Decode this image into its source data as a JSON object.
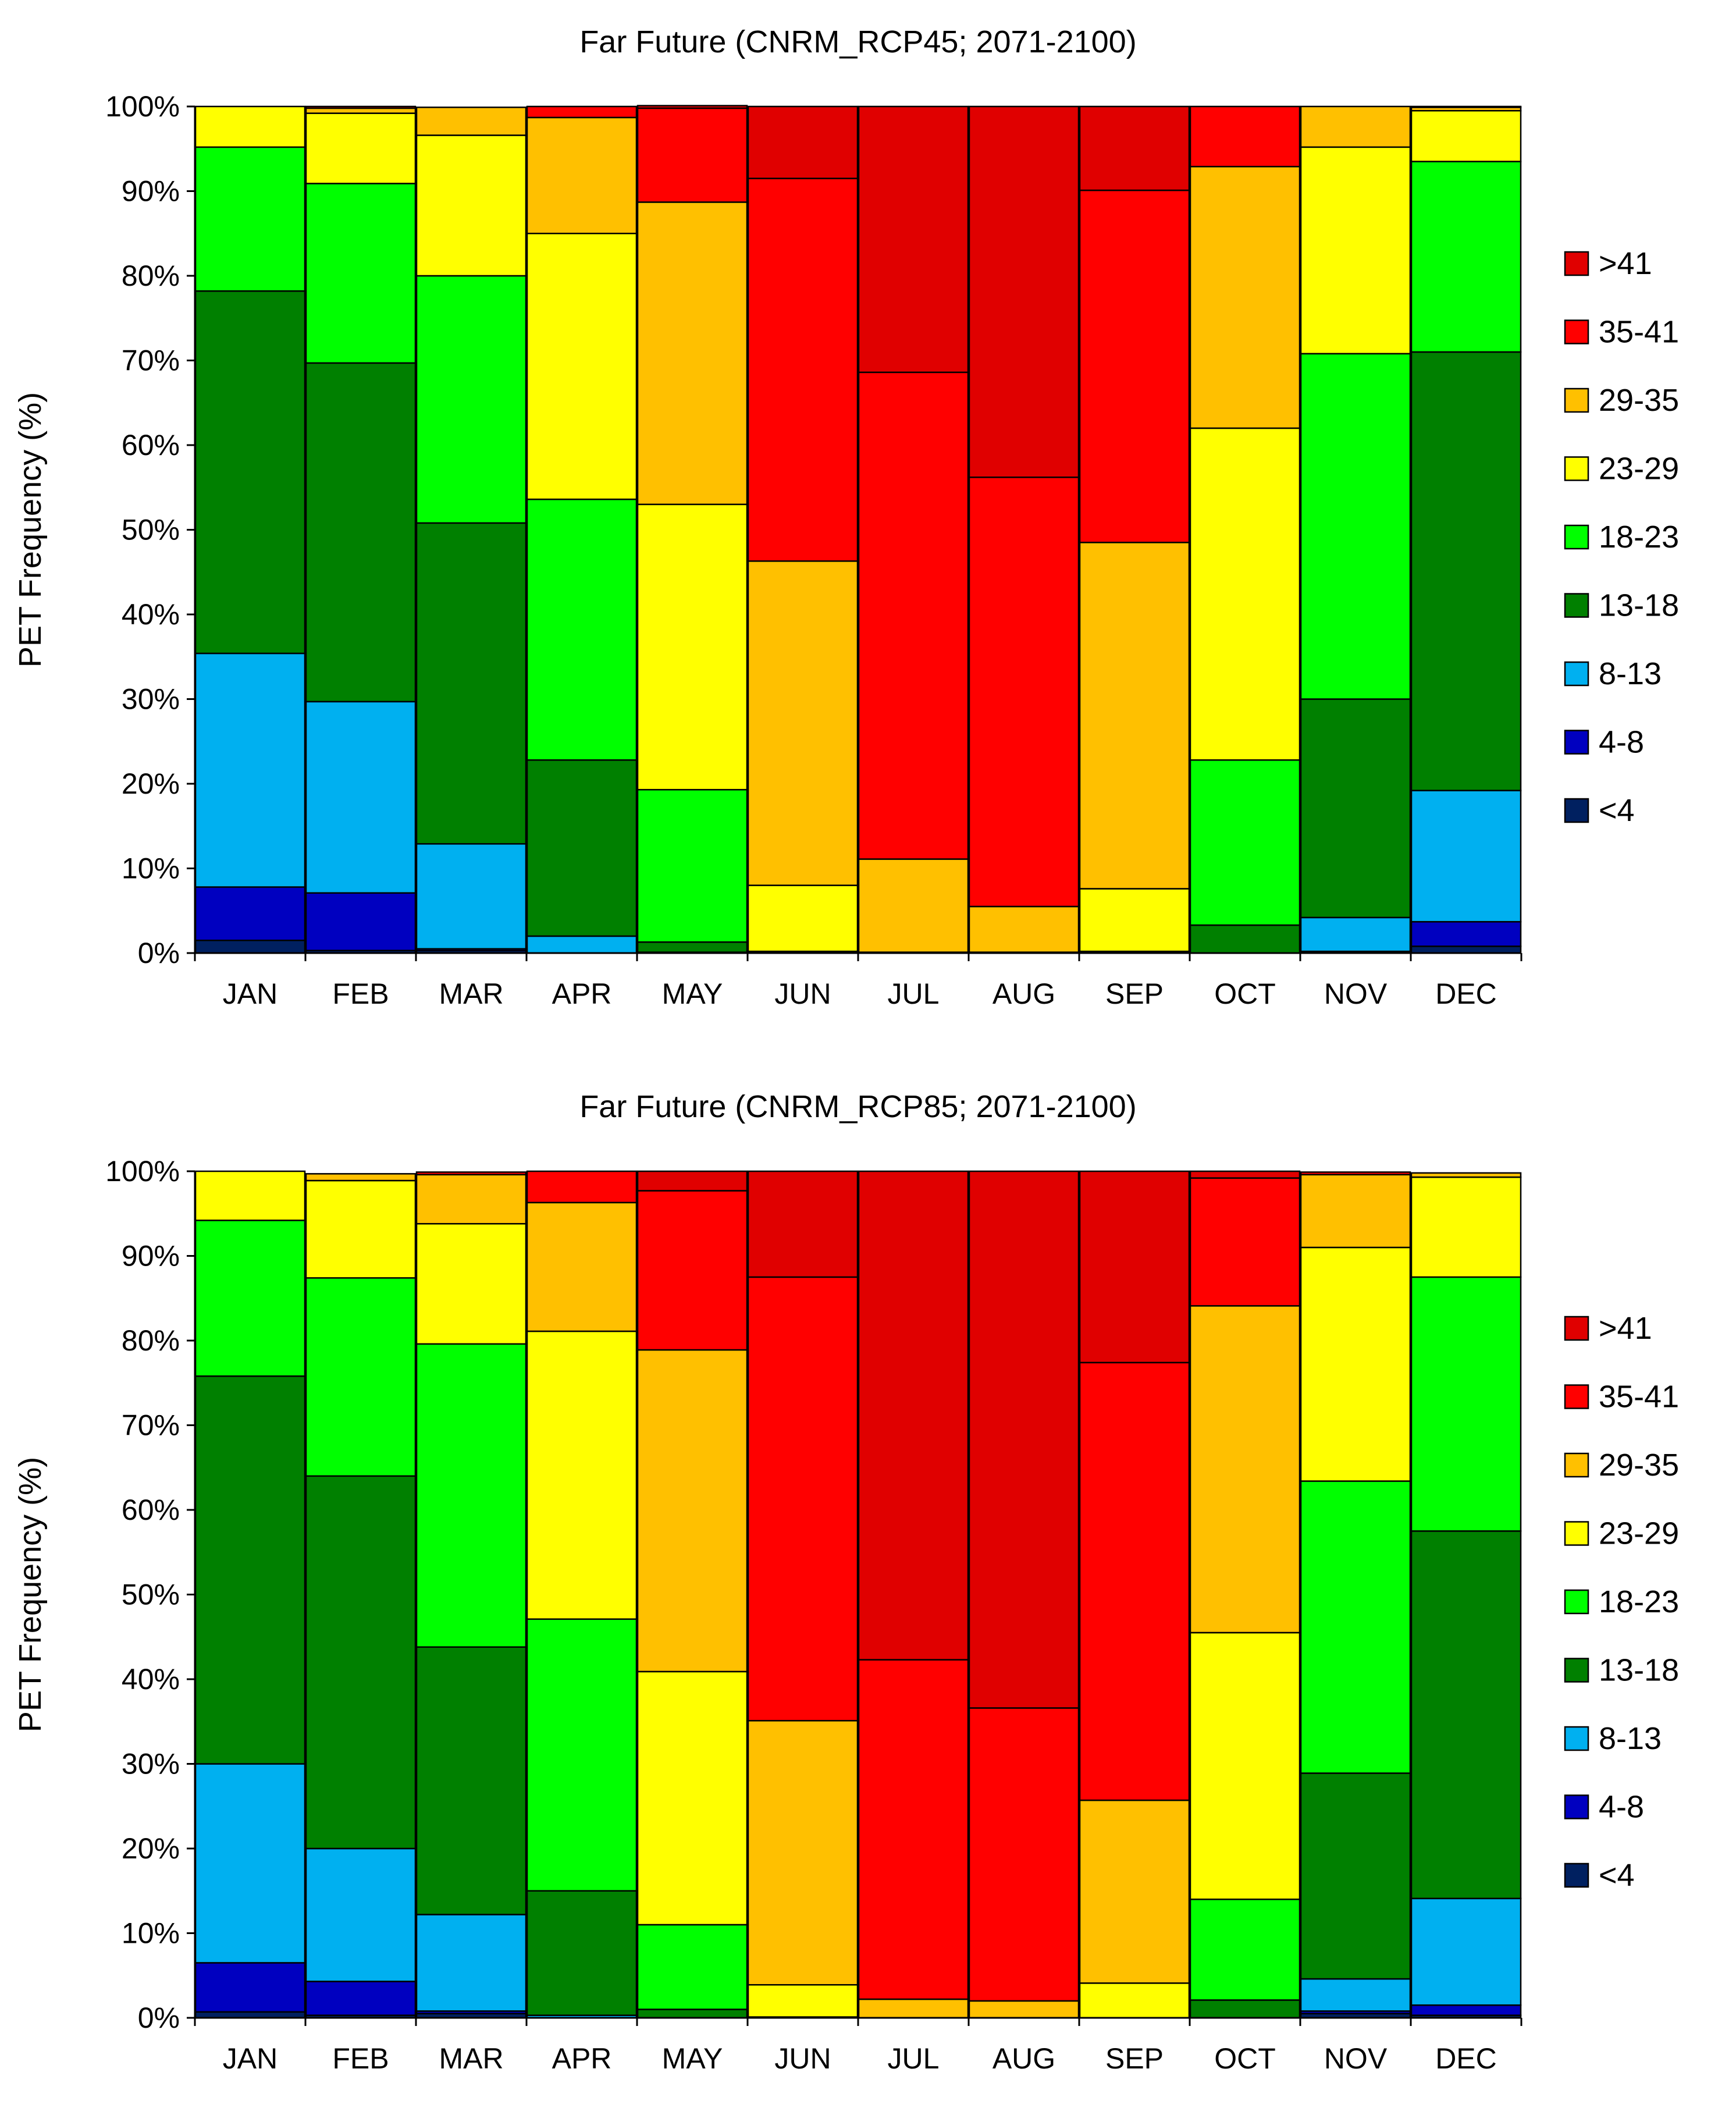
{
  "chart_data": [
    {
      "type": "bar",
      "stacked": true,
      "title": "Far Future (CNRM_RCP45; 2071-2100)",
      "xlabel": "",
      "ylabel": "PET Frequency (%)",
      "ylim": [
        0,
        100
      ],
      "yticks": [
        "0%",
        "10%",
        "20%",
        "30%",
        "40%",
        "50%",
        "60%",
        "70%",
        "80%",
        "90%",
        "100%"
      ],
      "legend_position": "right",
      "categories": [
        "JAN",
        "FEB",
        "MAR",
        "APR",
        "MAY",
        "JUN",
        "JUL",
        "AUG",
        "SEP",
        "OCT",
        "NOV",
        "DEC"
      ],
      "series": [
        {
          "name": "<4",
          "color": "#002060",
          "values": [
            1.5,
            0.3,
            0.3,
            0,
            0,
            0,
            0,
            0,
            0,
            0,
            0,
            0.8
          ]
        },
        {
          "name": "4-8",
          "color": "#0000C0",
          "values": [
            6.3,
            6.8,
            0.2,
            0,
            0,
            0,
            0,
            0,
            0,
            0,
            0.2,
            2.9
          ]
        },
        {
          "name": "8-13",
          "color": "#00B0F0",
          "values": [
            27.6,
            22.6,
            12.4,
            2.0,
            0.1,
            0,
            0,
            0,
            0,
            0,
            4.0,
            15.5
          ]
        },
        {
          "name": "13-18",
          "color": "#008000",
          "values": [
            42.8,
            40.0,
            37.9,
            20.8,
            1.2,
            0.1,
            0,
            0,
            0.1,
            3.3,
            25.8,
            51.8
          ]
        },
        {
          "name": "18-23",
          "color": "#00FF00",
          "values": [
            17.0,
            21.2,
            29.2,
            30.8,
            18.0,
            0.1,
            0,
            0,
            0.1,
            19.5,
            40.8,
            22.5
          ]
        },
        {
          "name": "23-29",
          "color": "#FFFF00",
          "values": [
            4.8,
            8.3,
            16.6,
            31.4,
            33.7,
            7.8,
            0.1,
            0.1,
            7.4,
            39.2,
            24.4,
            6.0
          ]
        },
        {
          "name": "29-35",
          "color": "#FFC000",
          "values": [
            0,
            0.6,
            3.3,
            13.7,
            35.7,
            38.3,
            11.0,
            5.4,
            40.9,
            30.9,
            4.8,
            0.4
          ]
        },
        {
          "name": "35-41",
          "color": "#FF0000",
          "values": [
            0,
            0.2,
            0,
            1.3,
            11.1,
            45.2,
            57.5,
            50.7,
            41.6,
            7.1,
            0,
            0.1
          ]
        },
        {
          "name": ">41",
          "color": "#E00000",
          "values": [
            0,
            0,
            0,
            0,
            0.3,
            8.5,
            31.4,
            43.8,
            9.9,
            0,
            0,
            0
          ]
        }
      ]
    },
    {
      "type": "bar",
      "stacked": true,
      "title": "Far Future (CNRM_RCP85; 2071-2100)",
      "xlabel": "",
      "ylabel": "PET Frequency (%)",
      "ylim": [
        0,
        100
      ],
      "yticks": [
        "0%",
        "10%",
        "20%",
        "30%",
        "40%",
        "50%",
        "60%",
        "70%",
        "80%",
        "90%",
        "100%"
      ],
      "legend_position": "right",
      "categories": [
        "JAN",
        "FEB",
        "MAR",
        "APR",
        "MAY",
        "JUN",
        "JUL",
        "AUG",
        "SEP",
        "OCT",
        "NOV",
        "DEC"
      ],
      "series": [
        {
          "name": "<4",
          "color": "#002060",
          "values": [
            0.7,
            0.3,
            0.5,
            0,
            0,
            0,
            0,
            0,
            0,
            0,
            0.5,
            0.3
          ]
        },
        {
          "name": "4-8",
          "color": "#0000C0",
          "values": [
            5.8,
            4.0,
            0.3,
            0,
            0,
            0,
            0,
            0,
            0,
            0,
            0.3,
            1.2
          ]
        },
        {
          "name": "8-13",
          "color": "#00B0F0",
          "values": [
            23.5,
            15.7,
            11.4,
            0.3,
            0,
            0,
            0,
            0,
            0,
            0,
            3.8,
            12.6
          ]
        },
        {
          "name": "13-18",
          "color": "#008000",
          "values": [
            45.8,
            44.0,
            31.6,
            14.7,
            1.0,
            0,
            0,
            0,
            0,
            2.1,
            24.3,
            43.4
          ]
        },
        {
          "name": "18-23",
          "color": "#00FF00",
          "values": [
            18.4,
            23.4,
            35.8,
            32.1,
            10.0,
            0.1,
            0,
            0,
            0,
            11.9,
            34.5,
            30.0
          ]
        },
        {
          "name": "23-29",
          "color": "#FFFF00",
          "values": [
            5.8,
            11.5,
            14.2,
            34.0,
            29.9,
            3.8,
            0,
            0,
            4.1,
            31.5,
            27.6,
            11.8
          ]
        },
        {
          "name": "29-35",
          "color": "#FFC000",
          "values": [
            0,
            0.8,
            5.8,
            15.2,
            38.0,
            31.2,
            2.2,
            2.0,
            21.6,
            38.6,
            8.6,
            0.5
          ]
        },
        {
          "name": "35-41",
          "color": "#FF0000",
          "values": [
            0,
            0,
            0.3,
            3.7,
            18.8,
            52.4,
            40.1,
            34.6,
            51.7,
            15.1,
            0.3,
            0
          ]
        },
        {
          "name": ">41",
          "color": "#E00000",
          "values": [
            0,
            0,
            0,
            0,
            2.3,
            12.5,
            57.7,
            63.4,
            22.6,
            0.8,
            0,
            0
          ]
        }
      ]
    }
  ]
}
